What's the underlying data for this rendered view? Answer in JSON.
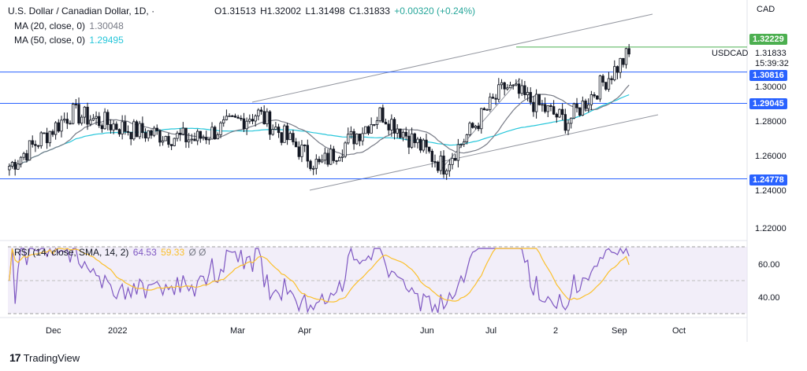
{
  "header": {
    "symbol_title": "U.S. Dollar / Canadian Dollar, 1D, ·",
    "ohlc": {
      "open": "O1.31513",
      "high": "H1.32002",
      "low": "L1.31498",
      "close": "C1.31833",
      "change": "+0.00320 (+0.24%)"
    },
    "ma20": {
      "label": "MA (20, close, 0)",
      "value": "1.30048",
      "color": "#787b86"
    },
    "ma50": {
      "label": "MA (50, close, 0)",
      "value": "1.29495",
      "color": "#26c6da"
    }
  },
  "price_axis": {
    "currency": "CAD",
    "ticks": [
      "1.30000",
      "1.28000",
      "1.26000",
      "1.24000",
      "1.22000"
    ],
    "last_price": "1.31833",
    "symbol": "USDCAD",
    "countdown": "15:39:32"
  },
  "levels": [
    {
      "value": "1.32229",
      "color": "#4caf50"
    },
    {
      "value": "1.30816",
      "color": "#2962ff"
    },
    {
      "value": "1.29045",
      "color": "#2962ff"
    },
    {
      "value": "1.24778",
      "color": "#2962ff"
    }
  ],
  "rsi": {
    "label": "RSI (14, close, SMA, 14, 2)",
    "value": "64.53",
    "sma_value": "59.33",
    "extra": "Ø  Ø",
    "ticks": [
      "60.00",
      "40.00"
    ]
  },
  "time_axis": [
    "Dec",
    "2022",
    "Mar",
    "Apr",
    "Jun",
    "Jul",
    "2",
    "Sep",
    "Oct"
  ],
  "footer": {
    "brand": "TradingView"
  },
  "chart_data": {
    "type": "candlestick",
    "title": "U.S. Dollar / Canadian Dollar, 1D",
    "ylim": [
      1.205,
      1.335
    ],
    "x": [
      "2021-11",
      "2021-12",
      "2022-01",
      "2022-02",
      "2022-03",
      "2022-04",
      "2022-05",
      "2022-06",
      "2022-07",
      "2022-08",
      "2022-09"
    ],
    "close": [
      1.255,
      1.285,
      1.275,
      1.27,
      1.285,
      1.255,
      1.285,
      1.255,
      1.3,
      1.28,
      1.31833
    ],
    "ohlc_last": {
      "open": 1.31513,
      "high": 1.32002,
      "low": 1.31498,
      "close": 1.31833
    },
    "horizontal_levels": [
      1.32229,
      1.30816,
      1.29045,
      1.24778
    ],
    "ma20_last": 1.30048,
    "ma50_last": 1.29495,
    "rsi_last": 64.53,
    "rsi_sma_last": 59.33,
    "rsi_ylim": [
      30,
      70
    ]
  }
}
